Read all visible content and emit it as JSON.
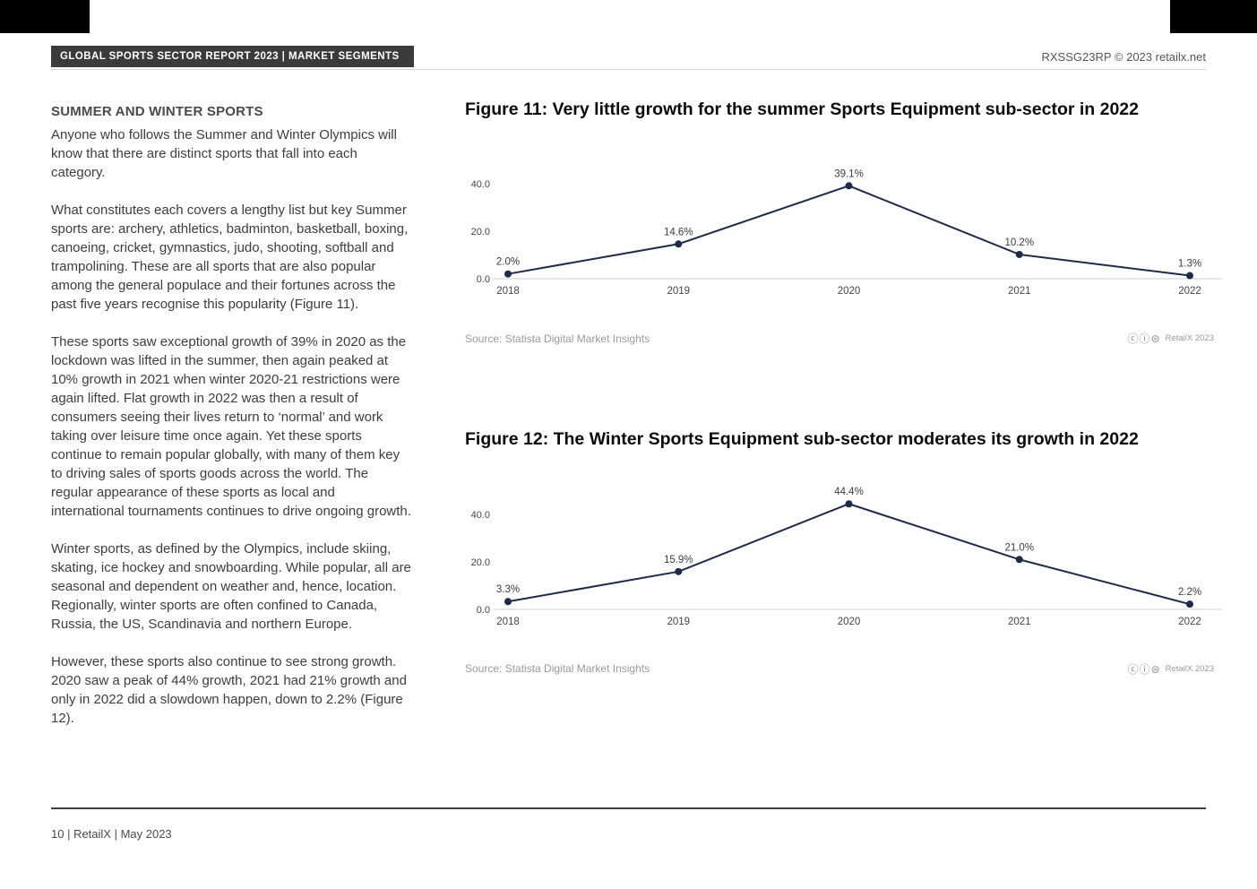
{
  "header": {
    "label": "GLOBAL SPORTS SECTOR REPORT 2023 | MARKET SEGMENTS",
    "ref": "RXSSG23RP © 2023 retailx.net"
  },
  "article": {
    "heading": "SUMMER AND WINTER SPORTS",
    "paragraphs": [
      "Anyone who follows the Summer and Winter Olympics will know that there are distinct sports that fall into each category.",
      "What constitutes each covers a lengthy list but key Summer sports are: archery, athletics, badminton, basketball, boxing, canoeing, cricket, gymnastics, judo, shooting, softball and trampolining. These are all sports that are also popular among the general populace and their fortunes across the past five years recognise this popularity (Figure 11).",
      "These sports saw exceptional growth of 39% in 2020 as the lockdown was lifted in the summer, then again peaked at 10% growth in 2021 when winter 2020-21 restrictions were again lifted. Flat growth in 2022 was then a result of consumers seeing their lives return to ‘normal’ and work taking over leisure time once again. Yet these sports continue to remain popular globally, with many of them key to driving sales of sports goods across the world. The regular appearance of these sports as local and international tournaments continues to drive ongoing growth.",
      "Winter sports, as defined by the Olympics, include skiing, skating, ice hockey and snowboarding. While popular, all are seasonal and dependent on weather and, hence, location. Regionally, winter sports are often confined to Canada, Russia, the US, Scandinavia and northern Europe.",
      "However, these sports also continue to see strong growth. 2020 saw a peak of 44% growth, 2021 had 21% growth and only in 2022 did a slowdown happen, down to 2.2% (Figure 12)."
    ]
  },
  "colors": {
    "line": "#1d2b4a",
    "axis": "#c9ced6",
    "tick_text": "#444444",
    "label_text": "#3b3b3b"
  },
  "chart_data": [
    {
      "type": "line",
      "title": "Figure 11: Very little growth for the summer Sports Equipment sub-sector in 2022",
      "categories": [
        "2018",
        "2019",
        "2020",
        "2021",
        "2022"
      ],
      "values": [
        2.0,
        14.6,
        39.1,
        10.2,
        1.3
      ],
      "labels": [
        "2.0%",
        "14.6%",
        "39.1%",
        "10.2%",
        "1.3%"
      ],
      "yticks": [
        0,
        20,
        40
      ],
      "ylim": [
        0,
        46
      ],
      "grid": false,
      "legend": "none",
      "source": "Source: Statista Digital Market Insights",
      "cc_glyphs": "ⓒⓘ⊜",
      "attribution": "RetailX 2023"
    },
    {
      "type": "line",
      "title": "Figure 12: The Winter Sports Equipment sub-sector moderates its growth in 2022",
      "categories": [
        "2018",
        "2019",
        "2020",
        "2021",
        "2022"
      ],
      "values": [
        3.3,
        15.9,
        44.4,
        21.0,
        2.2
      ],
      "labels": [
        "3.3%",
        "15.9%",
        "44.4%",
        "21.0%",
        "2.2%"
      ],
      "yticks": [
        0,
        20,
        40
      ],
      "ylim": [
        0,
        46
      ],
      "grid": false,
      "legend": "none",
      "source": "Source: Statista Digital Market Insights",
      "cc_glyphs": "ⓒⓘ⊜",
      "attribution": "RetailX 2023"
    }
  ],
  "footer": {
    "text": "10 | RetailX | May 2023"
  }
}
